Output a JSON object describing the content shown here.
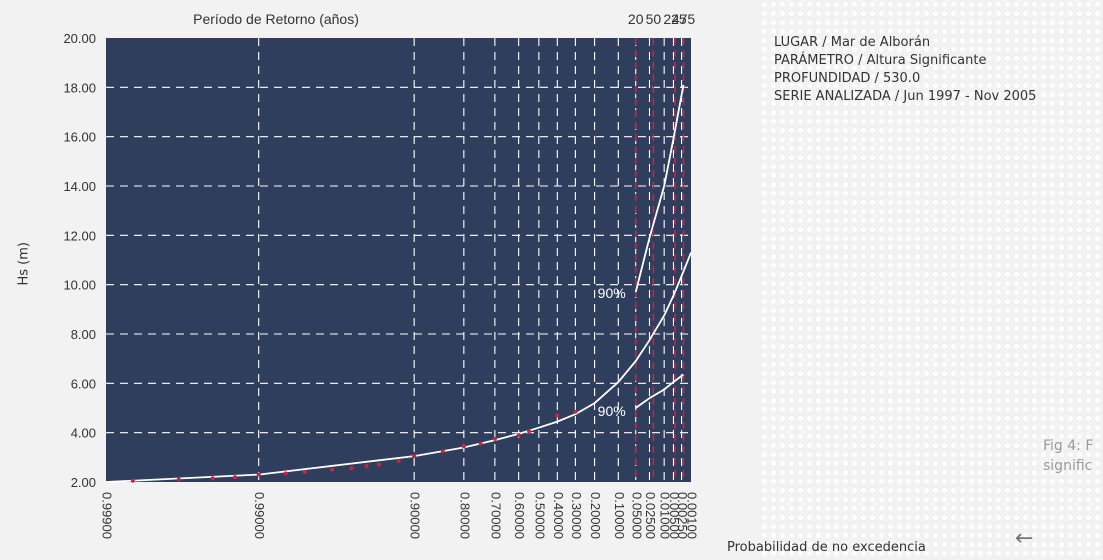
{
  "chart_data": {
    "type": "line",
    "xlabel": "Probabilidad de no excedencia",
    "ylabel": "Hs (m)",
    "top_axis_label": "Período de Retorno (años)",
    "ylim": [
      2,
      20
    ],
    "yticks": [
      "2.00",
      "4.00",
      "6.00",
      "8.00",
      "10.00",
      "12.00",
      "14.00",
      "16.00",
      "18.00",
      "20.00"
    ],
    "x_tick_labels": [
      "0.99900",
      "0.99000",
      "0.90000",
      "0.80000",
      "0.70000",
      "0.60000",
      "0.50000",
      "0.40000",
      "0.30000",
      "0.20000",
      "0.10000",
      "0.05000",
      "0.02500",
      "0.01000",
      "0.00500",
      "0.00250",
      "0.00100"
    ],
    "top_ticks": [
      "20",
      "50",
      "225",
      "475"
    ],
    "grid": true,
    "background_color": "#2e3e5c",
    "grid_color": "#ffffff",
    "return_period_line_color": "#d0223f",
    "series": [
      {
        "name": "",
        "x": [
          0.999,
          0.99,
          0.9,
          0.8,
          0.7,
          0.6,
          0.5,
          0.4,
          0.3,
          0.2,
          0.1,
          0.05,
          0.025,
          0.01,
          0.005,
          0.0025,
          0.001
        ],
        "values": [
          2.0,
          2.3,
          3.05,
          3.4,
          3.7,
          3.95,
          4.2,
          4.45,
          4.75,
          5.2,
          6.05,
          6.9,
          7.75,
          8.75,
          9.55,
          10.35,
          11.3
        ]
      },
      {
        "name": "",
        "label": "90%",
        "x": [
          0.05,
          0.025,
          0.01,
          0.005,
          0.0025,
          0.0021
        ],
        "values": [
          9.7,
          11.9,
          14.0,
          15.9,
          17.7,
          18.1
        ]
      },
      {
        "name": "",
        "label": "90%",
        "x": [
          0.05,
          0.025,
          0.01,
          0.005,
          0.0025,
          0.0021
        ],
        "values": [
          5.0,
          5.4,
          5.75,
          6.05,
          6.3,
          6.35
        ]
      }
    ],
    "points": {
      "x": [
        0.9985,
        0.997,
        0.995,
        0.993,
        0.99,
        0.985,
        0.98,
        0.97,
        0.96,
        0.95,
        0.94,
        0.92,
        0.9,
        0.85,
        0.8,
        0.75,
        0.7,
        0.6,
        0.55,
        0.4,
        0.3
      ],
      "values": [
        2.05,
        2.1,
        2.15,
        2.2,
        2.3,
        2.35,
        2.4,
        2.5,
        2.55,
        2.65,
        2.7,
        2.85,
        3.05,
        3.25,
        3.45,
        3.55,
        3.75,
        3.9,
        4.05,
        4.7,
        4.85
      ]
    },
    "return_periods": {
      "labels": [
        "20",
        "50",
        "225",
        "475"
      ],
      "x": [
        0.05,
        0.02,
        0.0044,
        0.0021
      ]
    }
  },
  "info": {
    "lugar": "LUGAR / Mar de Alborán",
    "parametro": "PARÁMETRO / Altura Significante",
    "profundidad": "PROFUNDIDAD / 530.0",
    "serie": "SERIE ANALIZADA / Jun 1997 - Nov 2005"
  },
  "caption": {
    "line1": "Fig 4: F",
    "line2": "signific"
  },
  "nav": {
    "back_icon": "←"
  }
}
